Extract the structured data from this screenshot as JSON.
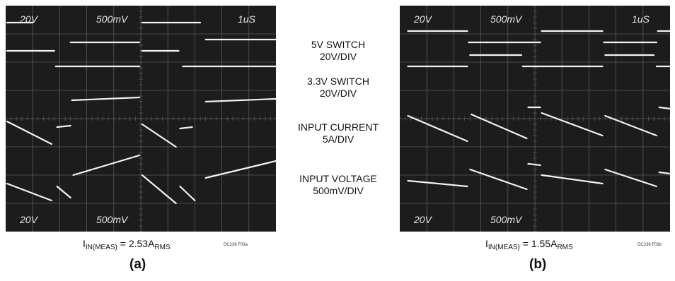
{
  "chart_data": [
    {
      "type": "line",
      "panel": "(a)",
      "screen_labels_top": [
        "20V",
        "500mV",
        "1uS"
      ],
      "screen_labels_bottom": [
        "20V",
        "500mV"
      ],
      "caption": {
        "main": "I",
        "sub1": "IN(MEAS)",
        "eq": " = 2.53A",
        "sub2": "RMS"
      },
      "figure_code": "DC236 F03a",
      "grid_divisions": {
        "x": 10,
        "y": 8
      },
      "series": [
        {
          "name": "5V SWITCH 20V/DIV",
          "segments": [
            [
              [
                0.05,
                0.6
              ],
              [
                1.0,
                0.6
              ]
            ],
            [
              [
                2.4,
                1.3
              ],
              [
                4.95,
                1.3
              ]
            ],
            [
              [
                5.05,
                0.6
              ],
              [
                7.2,
                0.6
              ]
            ],
            [
              [
                7.4,
                1.2
              ],
              [
                10.0,
                1.2
              ]
            ]
          ]
        },
        {
          "name": "3.3V SWITCH 20V/DIV",
          "segments": [
            [
              [
                0.05,
                1.6
              ],
              [
                1.8,
                1.6
              ]
            ],
            [
              [
                1.85,
                2.15
              ],
              [
                4.95,
                2.15
              ]
            ],
            [
              [
                5.05,
                1.6
              ],
              [
                6.4,
                1.6
              ]
            ],
            [
              [
                6.55,
                2.15
              ],
              [
                10.0,
                2.15
              ]
            ]
          ]
        },
        {
          "name": "INPUT CURRENT 5A/DIV",
          "segments": [
            [
              [
                0.05,
                4.1
              ],
              [
                1.7,
                4.9
              ]
            ],
            [
              [
                1.9,
                4.3
              ],
              [
                2.4,
                4.25
              ]
            ],
            [
              [
                2.45,
                3.35
              ],
              [
                4.95,
                3.25
              ]
            ],
            [
              [
                5.05,
                4.2
              ],
              [
                6.3,
                5.0
              ]
            ],
            [
              [
                6.45,
                4.35
              ],
              [
                6.9,
                4.3
              ]
            ],
            [
              [
                7.4,
                3.4
              ],
              [
                10.0,
                3.3
              ]
            ]
          ]
        },
        {
          "name": "INPUT VOLTAGE 500mV/DIV",
          "segments": [
            [
              [
                0.05,
                6.3
              ],
              [
                1.7,
                6.9
              ]
            ],
            [
              [
                1.9,
                6.4
              ],
              [
                2.4,
                6.8
              ]
            ],
            [
              [
                2.5,
                6.0
              ],
              [
                4.95,
                5.3
              ]
            ],
            [
              [
                5.05,
                6.0
              ],
              [
                6.3,
                7.0
              ]
            ],
            [
              [
                6.45,
                6.4
              ],
              [
                7.0,
                6.9
              ]
            ],
            [
              [
                7.4,
                6.1
              ],
              [
                10.0,
                5.5
              ]
            ]
          ]
        }
      ]
    },
    {
      "type": "line",
      "panel": "(b)",
      "screen_labels_top": [
        "20V",
        "500mV",
        "1uS"
      ],
      "screen_labels_bottom": [
        "20V",
        "500mV"
      ],
      "caption": {
        "main": "I",
        "sub1": "IN(MEAS)",
        "eq": " = 1.55A",
        "sub2": "RMS"
      },
      "figure_code": "DC236 F03b",
      "grid_divisions": {
        "x": 10,
        "y": 8
      },
      "series": [
        {
          "name": "5V SWITCH 20V/DIV",
          "segments": [
            [
              [
                0.3,
                0.9
              ],
              [
                2.5,
                0.9
              ]
            ],
            [
              [
                2.55,
                1.3
              ],
              [
                5.2,
                1.3
              ]
            ],
            [
              [
                5.25,
                0.9
              ],
              [
                7.5,
                0.9
              ]
            ],
            [
              [
                7.55,
                1.3
              ],
              [
                9.5,
                1.3
              ]
            ],
            [
              [
                9.55,
                0.9
              ],
              [
                10.0,
                0.9
              ]
            ]
          ]
        },
        {
          "name": "3.3V SWITCH 20V/DIV",
          "segments": [
            [
              [
                0.3,
                2.15
              ],
              [
                2.5,
                2.15
              ]
            ],
            [
              [
                2.6,
                1.75
              ],
              [
                4.5,
                1.75
              ]
            ],
            [
              [
                4.55,
                2.15
              ],
              [
                7.5,
                2.15
              ]
            ],
            [
              [
                7.6,
                1.75
              ],
              [
                9.4,
                1.75
              ]
            ],
            [
              [
                9.5,
                2.15
              ],
              [
                10.0,
                2.15
              ]
            ]
          ]
        },
        {
          "name": "INPUT CURRENT 5A/DIV",
          "segments": [
            [
              [
                0.3,
                3.9
              ],
              [
                2.5,
                4.8
              ]
            ],
            [
              [
                2.65,
                3.85
              ],
              [
                4.7,
                4.7
              ]
            ],
            [
              [
                4.75,
                3.6
              ],
              [
                5.2,
                3.6
              ]
            ],
            [
              [
                5.25,
                3.8
              ],
              [
                7.5,
                4.6
              ]
            ],
            [
              [
                7.6,
                3.9
              ],
              [
                9.5,
                4.6
              ]
            ],
            [
              [
                9.6,
                3.6
              ],
              [
                10.0,
                3.65
              ]
            ]
          ]
        },
        {
          "name": "INPUT VOLTAGE 500mV/DIV",
          "segments": [
            [
              [
                0.3,
                6.2
              ],
              [
                2.5,
                6.4
              ]
            ],
            [
              [
                2.6,
                5.8
              ],
              [
                4.7,
                6.5
              ]
            ],
            [
              [
                4.75,
                5.6
              ],
              [
                5.2,
                5.65
              ]
            ],
            [
              [
                5.25,
                6.0
              ],
              [
                7.5,
                6.3
              ]
            ],
            [
              [
                7.6,
                5.8
              ],
              [
                9.5,
                6.4
              ]
            ],
            [
              [
                9.6,
                5.9
              ],
              [
                10.0,
                5.95
              ]
            ]
          ]
        }
      ]
    }
  ],
  "legend": [
    {
      "line1": "5V SWITCH",
      "line2": "20V/DIV"
    },
    {
      "line1": "3.3V SWITCH",
      "line2": "20V/DIV"
    },
    {
      "line1": "INPUT CURRENT",
      "line2": "5A/DIV"
    },
    {
      "line1": "INPUT VOLTAGE",
      "line2": "500mV/DIV"
    }
  ],
  "colors": {
    "screen": "#1c1c1c",
    "grid": "#5a5a5a",
    "trace": "#f2f2f2",
    "label": "#e6e6e6"
  }
}
